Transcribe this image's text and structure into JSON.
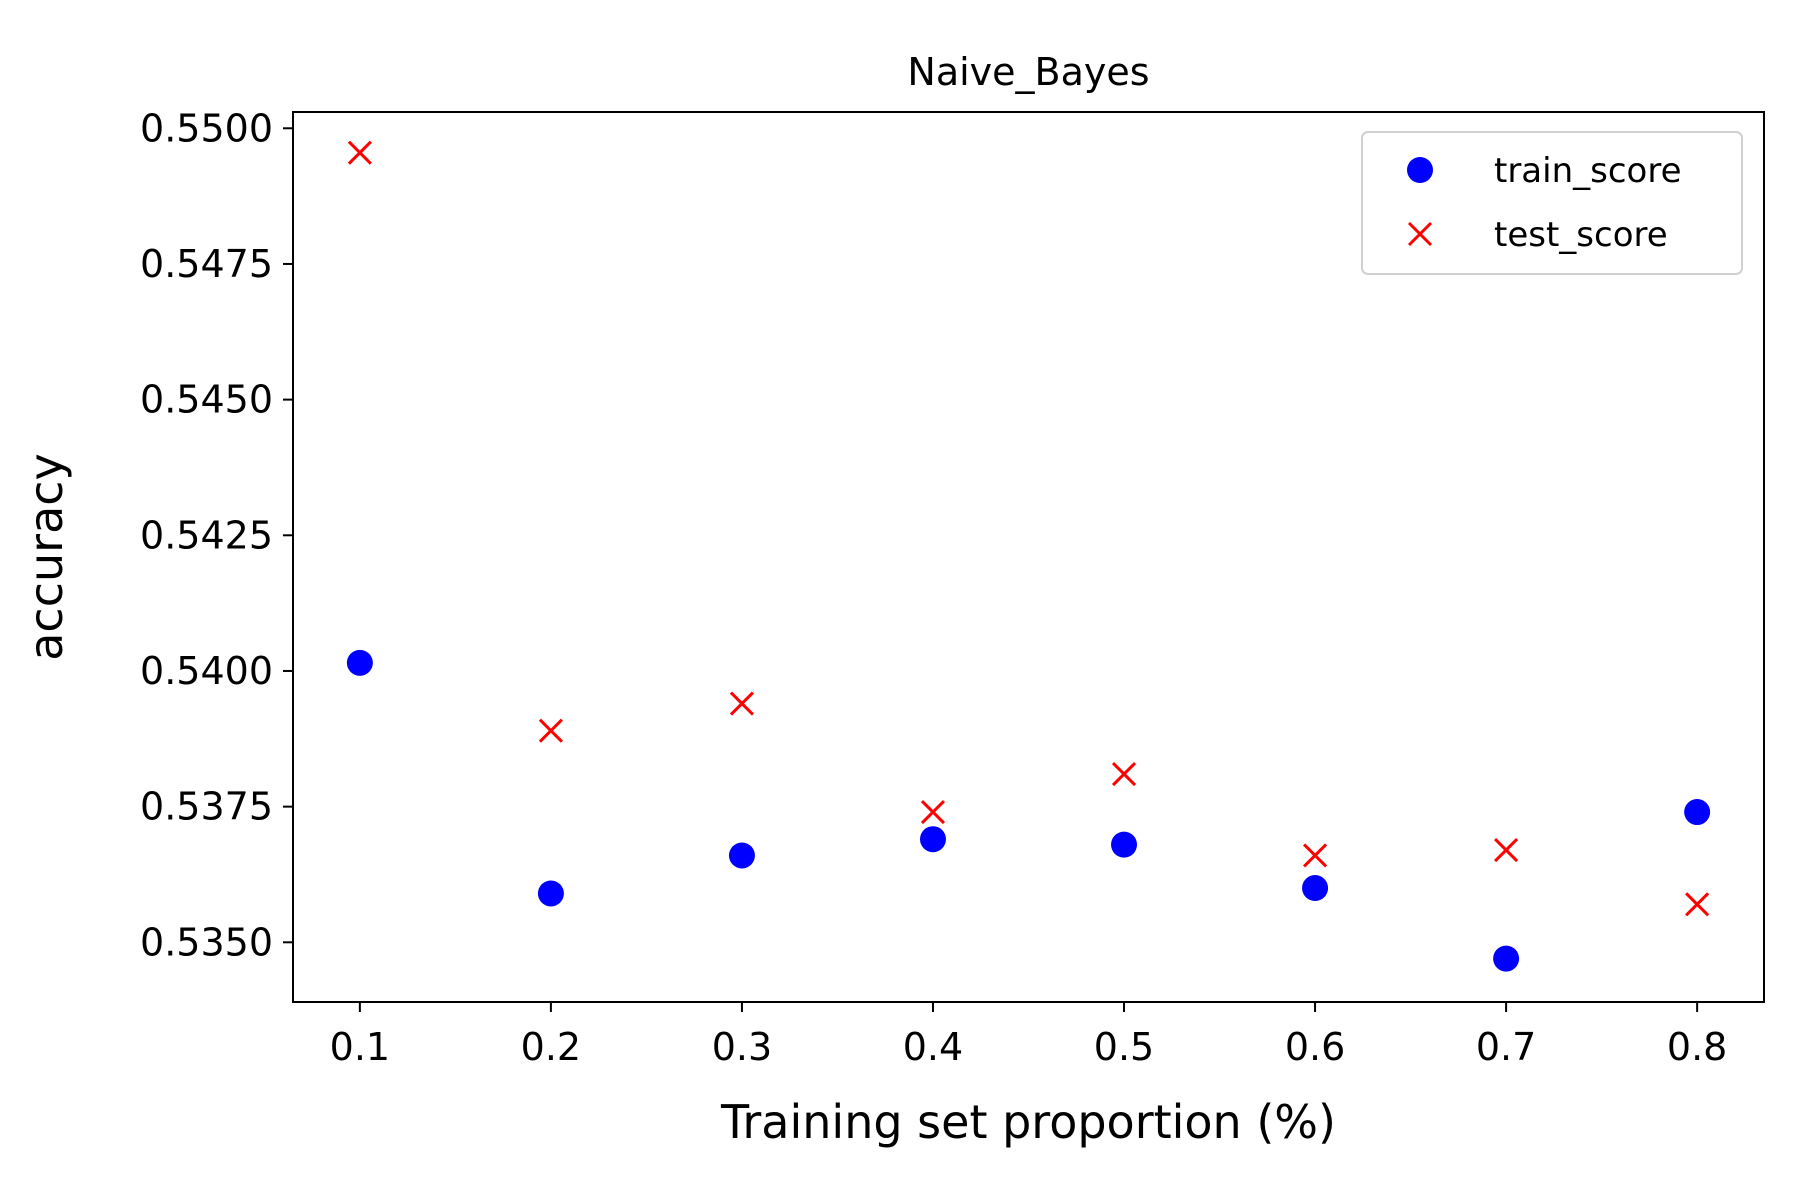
{
  "chart_data": {
    "type": "scatter",
    "title": "Naive_Bayes",
    "xlabel": "Training set proportion (%)",
    "ylabel": "accuracy",
    "x": [
      0.1,
      0.2,
      0.3,
      0.4,
      0.5,
      0.6,
      0.7,
      0.8
    ],
    "x_ticks": [
      "0.1",
      "0.2",
      "0.3",
      "0.4",
      "0.5",
      "0.6",
      "0.7",
      "0.8"
    ],
    "y_ticks": [
      "0.5350",
      "0.5375",
      "0.5400",
      "0.5425",
      "0.5450",
      "0.5475",
      "0.5500"
    ],
    "xlim": [
      0.065,
      0.835
    ],
    "ylim": [
      0.5339,
      0.5503
    ],
    "grid": false,
    "legend_position": "top-right",
    "series": [
      {
        "name": "train_score",
        "marker": "circle",
        "color": "#0000ff",
        "values": [
          0.54015,
          0.5359,
          0.5366,
          0.5369,
          0.5368,
          0.536,
          0.5347,
          0.5374
        ]
      },
      {
        "name": "test_score",
        "marker": "x",
        "color": "#ff0000",
        "values": [
          0.54955,
          0.5389,
          0.5394,
          0.5374,
          0.5381,
          0.5366,
          0.5367,
          0.5357
        ]
      }
    ]
  }
}
